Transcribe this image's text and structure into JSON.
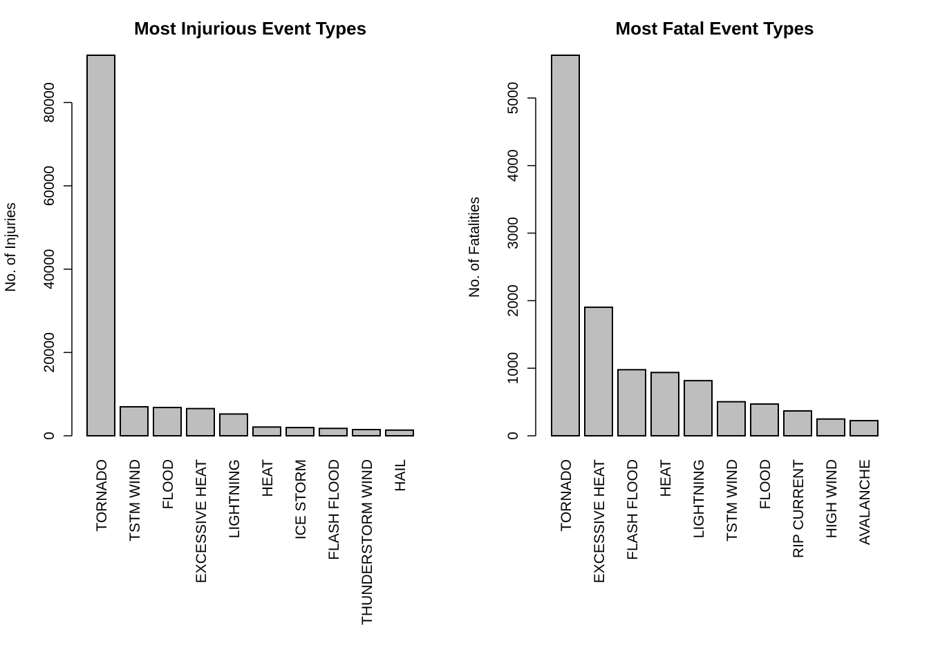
{
  "chart_data": [
    {
      "type": "bar",
      "title": "Most Injurious Event Types",
      "xlabel": "",
      "ylabel": "No. of Injuries",
      "categories": [
        "TORNADO",
        "TSTM WIND",
        "FLOOD",
        "EXCESSIVE HEAT",
        "LIGHTNING",
        "HEAT",
        "ICE STORM",
        "FLASH FLOOD",
        "THUNDERSTORM WIND",
        "HAIL"
      ],
      "values": [
        91346,
        6957,
        6789,
        6525,
        5230,
        2100,
        1975,
        1777,
        1488,
        1361
      ],
      "ylim": [
        0,
        91346
      ],
      "yticks": [
        0,
        20000,
        40000,
        60000,
        80000
      ],
      "colors": {
        "bar_fill": "#bebebe",
        "bar_stroke": "#000000"
      }
    },
    {
      "type": "bar",
      "title": "Most Fatal Event Types",
      "xlabel": "",
      "ylabel": "No. of Fatalities",
      "categories": [
        "TORNADO",
        "EXCESSIVE HEAT",
        "FLASH FLOOD",
        "HEAT",
        "LIGHTNING",
        "TSTM WIND",
        "FLOOD",
        "RIP CURRENT",
        "HIGH WIND",
        "AVALANCHE"
      ],
      "values": [
        5633,
        1903,
        978,
        937,
        816,
        504,
        470,
        368,
        248,
        224
      ],
      "ylim": [
        0,
        5633
      ],
      "yticks": [
        0,
        1000,
        2000,
        3000,
        4000,
        5000
      ],
      "colors": {
        "bar_fill": "#bebebe",
        "bar_stroke": "#000000"
      }
    }
  ]
}
